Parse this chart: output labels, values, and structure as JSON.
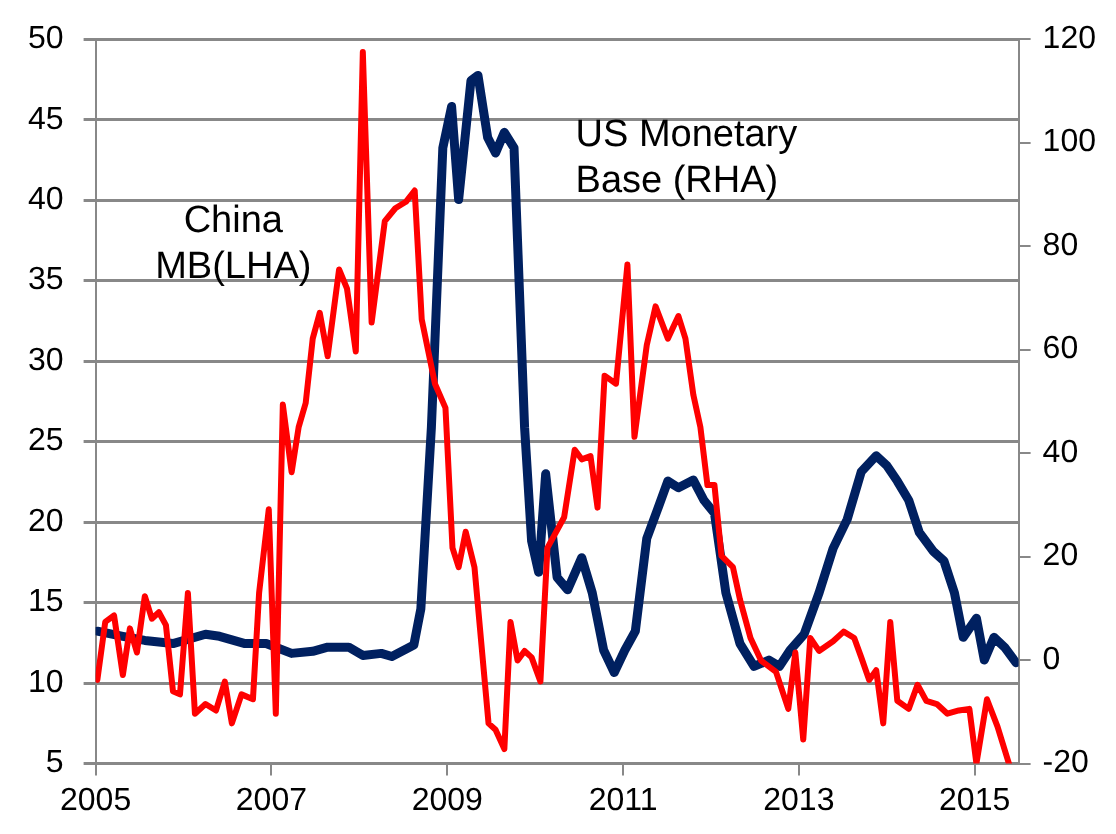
{
  "chart_data": {
    "type": "line",
    "xlim": [
      2005,
      2015.5
    ],
    "xticks": [
      2005,
      2007,
      2009,
      2011,
      2013,
      2015
    ],
    "ylim": [
      5,
      50
    ],
    "yticks": [
      5,
      10,
      15,
      20,
      25,
      30,
      35,
      40,
      45,
      50
    ],
    "y2lim": [
      -20,
      120
    ],
    "y2ticks": [
      -20,
      0,
      20,
      40,
      60,
      80,
      100,
      120
    ],
    "grid": "y",
    "legend": false,
    "marker": "none",
    "line_style": "solid",
    "series": [
      {
        "name": "China MB(LHA)",
        "color": "#ff0000",
        "x": [
          2005.02,
          2005.11,
          2005.21,
          2005.31,
          2005.39,
          2005.47,
          2005.56,
          2005.64,
          2005.72,
          2005.8,
          2005.88,
          2005.96,
          2006.05,
          2006.13,
          2006.25,
          2006.37,
          2006.47,
          2006.55,
          2006.66,
          2006.79,
          2006.86,
          2006.97,
          2007.05,
          2007.13,
          2007.23,
          2007.31,
          2007.39,
          2007.47,
          2007.55,
          2007.64,
          2007.77,
          2007.86,
          2007.96,
          2008.04,
          2008.14,
          2008.29,
          2008.41,
          2008.53,
          2008.63,
          2008.71,
          2008.86,
          2008.98,
          2009.06,
          2009.13,
          2009.21,
          2009.31,
          2009.47,
          2009.55,
          2009.65,
          2009.72,
          2009.8,
          2009.88,
          2009.96,
          2010.06,
          2010.14,
          2010.33,
          2010.45,
          2010.53,
          2010.63,
          2010.71,
          2010.79,
          2010.92,
          2011.05,
          2011.13,
          2011.27,
          2011.37,
          2011.51,
          2011.63,
          2011.71,
          2011.8,
          2011.88,
          2011.96,
          2012.04,
          2012.12,
          2012.25,
          2012.33,
          2012.45,
          2012.57,
          2012.74,
          2012.88,
          2012.96,
          2013.05,
          2013.13,
          2013.23,
          2013.39,
          2013.51,
          2013.63,
          2013.71,
          2013.8,
          2013.88,
          2013.96,
          2014.04,
          2014.12,
          2014.25,
          2014.35,
          2014.45,
          2014.57,
          2014.69,
          2014.82,
          2014.94,
          2015.02,
          2015.14,
          2015.26,
          2015.39
        ],
        "values": [
          10.2,
          13.8,
          14.2,
          10.5,
          13.4,
          11.9,
          15.4,
          14.0,
          14.4,
          13.6,
          9.5,
          9.3,
          15.6,
          8.1,
          8.7,
          8.3,
          10.1,
          7.5,
          9.3,
          9.0,
          15.6,
          20.8,
          8.1,
          27.3,
          23.1,
          25.9,
          27.4,
          31.4,
          33.0,
          30.3,
          35.7,
          34.5,
          30.6,
          49.2,
          32.4,
          38.7,
          39.5,
          39.9,
          40.6,
          32.6,
          28.6,
          27.1,
          18.4,
          17.2,
          19.4,
          17.2,
          7.5,
          7.1,
          5.9,
          13.8,
          11.4,
          12.0,
          11.6,
          10.1,
          18.4,
          20.3,
          24.5,
          23.9,
          24.1,
          20.9,
          29.1,
          28.6,
          36.0,
          25.3,
          31.0,
          33.4,
          31.4,
          32.8,
          31.4,
          27.9,
          25.9,
          22.3,
          22.3,
          17.9,
          17.2,
          15.2,
          12.8,
          11.4,
          10.7,
          8.4,
          11.9,
          6.5,
          12.8,
          12.0,
          12.6,
          13.2,
          12.8,
          11.6,
          10.2,
          10.8,
          7.5,
          13.8,
          8.9,
          8.4,
          9.9,
          8.9,
          8.7,
          8.1,
          8.3,
          8.4,
          5.0,
          9.0,
          7.3,
          5.0
        ]
      },
      {
        "name": "US Monetary Base (RHA)",
        "color": "#002060",
        "axis": "y2",
        "x": [
          2005.02,
          2005.31,
          2005.56,
          2005.88,
          2006.25,
          2006.41,
          2006.7,
          2006.94,
          2007.23,
          2007.47,
          2007.64,
          2007.88,
          2008.04,
          2008.25,
          2008.37,
          2008.62,
          2008.7,
          2008.82,
          2008.95,
          2009.05,
          2009.13,
          2009.27,
          2009.35,
          2009.46,
          2009.55,
          2009.65,
          2009.76,
          2009.88,
          2009.96,
          2010.04,
          2010.12,
          2010.25,
          2010.37,
          2010.53,
          2010.65,
          2010.78,
          2010.9,
          2011.02,
          2011.14,
          2011.27,
          2011.39,
          2011.51,
          2011.63,
          2011.8,
          2011.92,
          2012.04,
          2012.17,
          2012.33,
          2012.49,
          2012.66,
          2012.78,
          2012.9,
          2013.06,
          2013.23,
          2013.39,
          2013.55,
          2013.71,
          2013.88,
          2014.0,
          2014.12,
          2014.25,
          2014.37,
          2014.53,
          2014.65,
          2014.77,
          2014.87,
          2015.02,
          2015.11,
          2015.22,
          2015.34,
          2015.47
        ],
        "values": [
          5.6,
          4.6,
          3.8,
          3.2,
          5.0,
          4.6,
          3.2,
          3.2,
          1.3,
          1.7,
          2.5,
          2.5,
          0.9,
          1.3,
          0.7,
          2.9,
          9.9,
          45,
          99,
          107,
          89,
          112,
          113,
          101,
          98,
          102,
          99,
          45,
          23,
          17,
          36,
          16,
          13.6,
          19.8,
          13,
          1.9,
          -2.4,
          1.9,
          5.6,
          23.5,
          29,
          34.6,
          33.3,
          34.8,
          30.9,
          28.4,
          13,
          3.2,
          -1.2,
          0,
          -1.2,
          1.9,
          5,
          13,
          21.6,
          27.2,
          36.4,
          39.5,
          37.6,
          34.6,
          30.9,
          24.7,
          21,
          19.2,
          13,
          4.4,
          8.1,
          0,
          4.4,
          2.5,
          -0.5
        ]
      }
    ]
  }
}
